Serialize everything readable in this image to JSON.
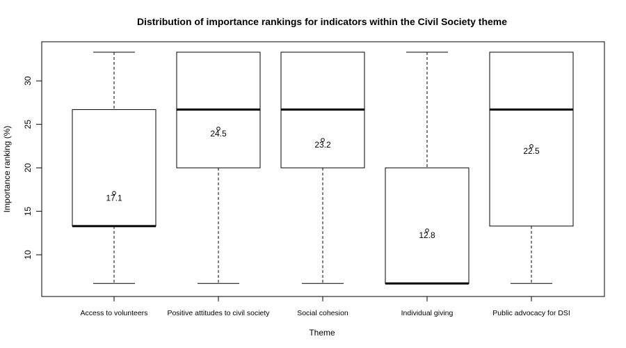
{
  "chart_data": {
    "type": "boxplot",
    "title": "Distribution of importance rankings for indicators within the Civil Society theme",
    "xlabel": "Theme",
    "ylabel": "Importance ranking (%)",
    "ylim": [
      5.2,
      34.5
    ],
    "yticks": [
      10,
      15,
      20,
      25,
      30
    ],
    "grid": false,
    "categories": [
      "Access to volunteers",
      "Positive attitudes to civil society",
      "Social cohesion",
      "Individual giving",
      "Public advocacy for DSI"
    ],
    "boxes": [
      {
        "min": 6.7,
        "q1": 13.3,
        "median": 13.3,
        "q3": 26.7,
        "max": 33.3,
        "mean": 17.1,
        "mean_label": "17.1"
      },
      {
        "min": 6.7,
        "q1": 20.0,
        "median": 26.7,
        "q3": 33.3,
        "max": 33.3,
        "mean": 24.5,
        "mean_label": "24.5"
      },
      {
        "min": 6.7,
        "q1": 20.0,
        "median": 26.7,
        "q3": 33.3,
        "max": 33.3,
        "mean": 23.2,
        "mean_label": "23.2"
      },
      {
        "min": 6.7,
        "q1": 6.7,
        "median": 6.7,
        "q3": 20.0,
        "max": 33.3,
        "mean": 12.8,
        "mean_label": "12.8"
      },
      {
        "min": 6.7,
        "q1": 13.3,
        "median": 26.7,
        "q3": 33.3,
        "max": 33.3,
        "mean": 22.5,
        "mean_label": "22.5"
      }
    ]
  }
}
